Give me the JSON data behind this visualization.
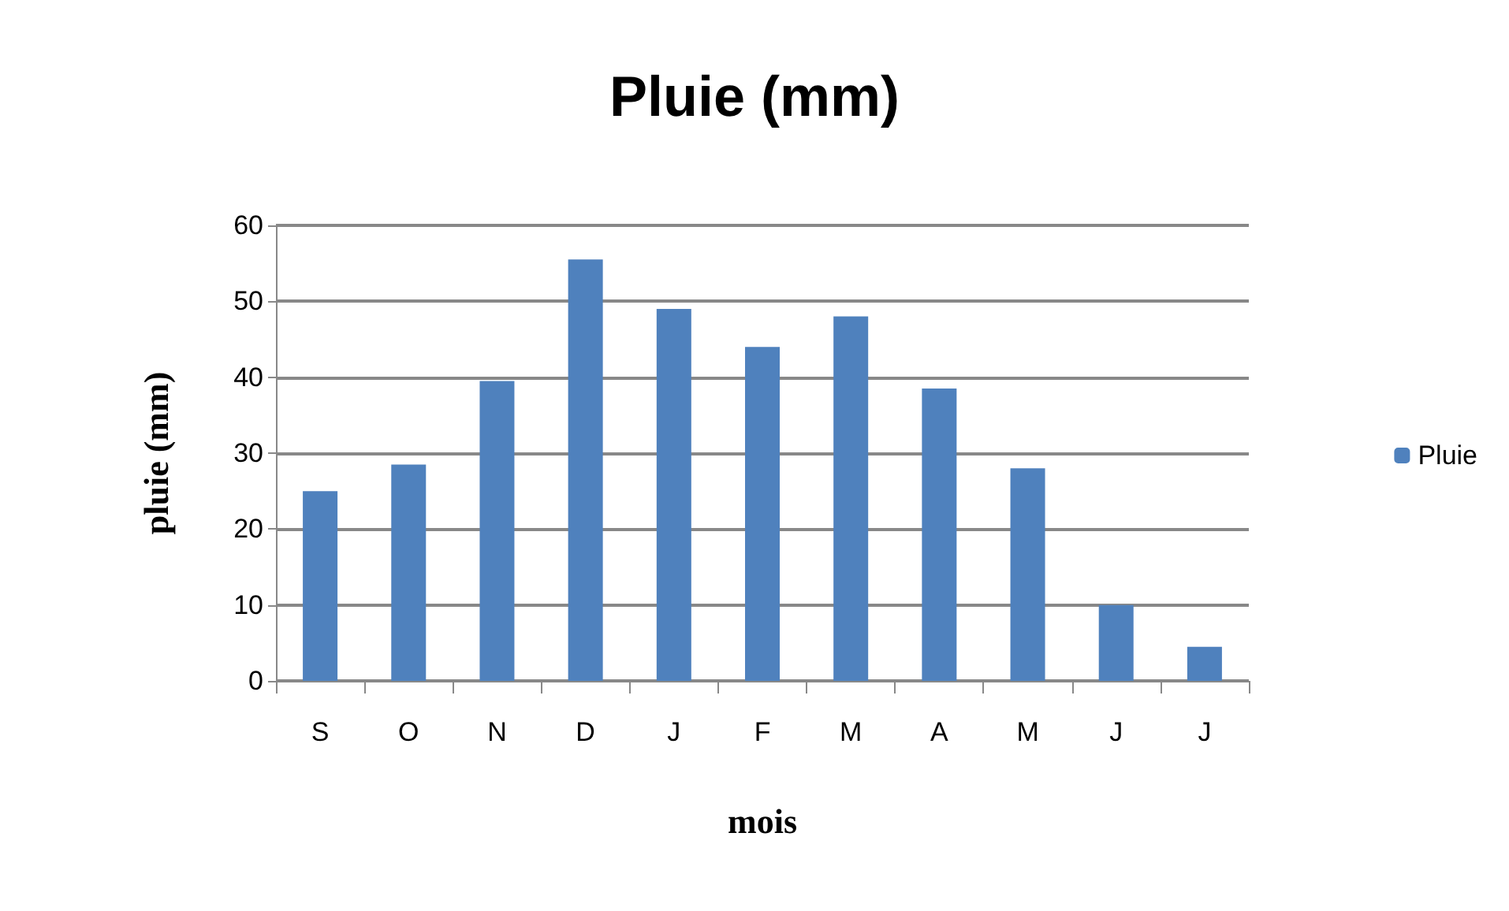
{
  "chart_data": {
    "type": "bar",
    "title": "Pluie (mm)",
    "xlabel": "mois",
    "ylabel": "pluie (mm)",
    "categories": [
      "S",
      "O",
      "N",
      "D",
      "J",
      "F",
      "M",
      "A",
      "M",
      "J",
      "J"
    ],
    "series": [
      {
        "name": "Pluie",
        "color": "#4f81bd",
        "values": [
          25,
          28.5,
          39.5,
          55.5,
          49,
          44,
          48,
          38.5,
          28,
          10,
          4.5
        ]
      }
    ],
    "ylim": [
      0,
      60
    ],
    "yticks": [
      0,
      10,
      20,
      30,
      40,
      50,
      60
    ],
    "grid": "y",
    "legend": "right"
  }
}
